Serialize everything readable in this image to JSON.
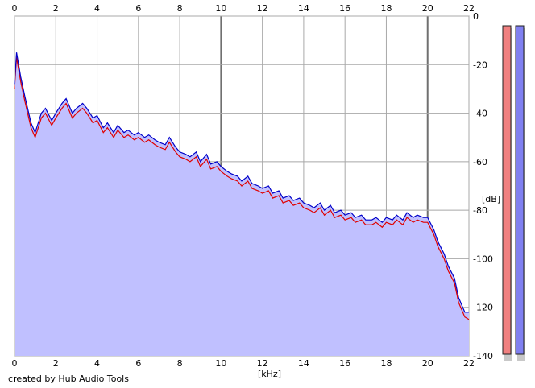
{
  "chart_data": {
    "type": "line",
    "title": "",
    "xlabel": "[kHz]",
    "ylabel": "[dB]",
    "xlim": [
      0,
      22
    ],
    "ylim": [
      -140,
      0
    ],
    "x_ticks": [
      "0",
      "2",
      "4",
      "6",
      "8",
      "10",
      "12",
      "14",
      "16",
      "18",
      "20",
      "22"
    ],
    "y_ticks": [
      "0",
      "-20",
      "-40",
      "-60",
      "-80",
      "-100",
      "-120",
      "-140"
    ],
    "grid": true,
    "series": [
      {
        "color": "#e00000",
        "x": [
          0,
          0.1,
          0.3,
          0.5,
          0.8,
          1.0,
          1.3,
          1.5,
          1.8,
          2.0,
          2.3,
          2.5,
          2.8,
          3.0,
          3.3,
          3.5,
          3.8,
          4.0,
          4.3,
          4.5,
          4.8,
          5.0,
          5.3,
          5.5,
          5.8,
          6.0,
          6.3,
          6.5,
          6.8,
          7.0,
          7.3,
          7.5,
          7.8,
          8.0,
          8.3,
          8.5,
          8.8,
          9.0,
          9.3,
          9.5,
          9.8,
          10.0,
          10.3,
          10.5,
          10.8,
          11.0,
          11.3,
          11.5,
          11.8,
          12.0,
          12.3,
          12.5,
          12.8,
          13.0,
          13.3,
          13.5,
          13.8,
          14.0,
          14.3,
          14.5,
          14.8,
          15.0,
          15.3,
          15.5,
          15.8,
          16.0,
          16.3,
          16.5,
          16.8,
          17.0,
          17.3,
          17.5,
          17.8,
          18.0,
          18.3,
          18.5,
          18.8,
          19.0,
          19.3,
          19.5,
          19.8,
          20.0,
          20.3,
          20.5,
          20.8,
          21.0,
          21.3,
          21.5,
          21.8,
          22.0
        ],
        "y": [
          -30,
          -17,
          -27,
          -35,
          -46,
          -50,
          -42,
          -40,
          -45,
          -42,
          -38,
          -36,
          -42,
          -40,
          -38,
          -40,
          -44,
          -43,
          -48,
          -46,
          -50,
          -47,
          -50,
          -49,
          -51,
          -50,
          -52,
          -51,
          -53,
          -54,
          -55,
          -52,
          -56,
          -58,
          -59,
          -60,
          -58,
          -62,
          -59,
          -63,
          -62,
          -64,
          -66,
          -67,
          -68,
          -70,
          -68,
          -71,
          -72,
          -73,
          -72,
          -75,
          -74,
          -77,
          -76,
          -78,
          -77,
          -79,
          -80,
          -81,
          -79,
          -82,
          -80,
          -83,
          -82,
          -84,
          -83,
          -85,
          -84,
          -86,
          -86,
          -85,
          -87,
          -85,
          -86,
          -84,
          -86,
          -83,
          -85,
          -84,
          -85,
          -85,
          -90,
          -95,
          -100,
          -105,
          -110,
          -118,
          -124,
          -125
        ]
      },
      {
        "color": "#0000c8",
        "x": [
          0,
          0.1,
          0.3,
          0.5,
          0.8,
          1.0,
          1.3,
          1.5,
          1.8,
          2.0,
          2.3,
          2.5,
          2.8,
          3.0,
          3.3,
          3.5,
          3.8,
          4.0,
          4.3,
          4.5,
          4.8,
          5.0,
          5.3,
          5.5,
          5.8,
          6.0,
          6.3,
          6.5,
          6.8,
          7.0,
          7.3,
          7.5,
          7.8,
          8.0,
          8.3,
          8.5,
          8.8,
          9.0,
          9.3,
          9.5,
          9.8,
          10.0,
          10.3,
          10.5,
          10.8,
          11.0,
          11.3,
          11.5,
          11.8,
          12.0,
          12.3,
          12.5,
          12.8,
          13.0,
          13.3,
          13.5,
          13.8,
          14.0,
          14.3,
          14.5,
          14.8,
          15.0,
          15.3,
          15.5,
          15.8,
          16.0,
          16.3,
          16.5,
          16.8,
          17.0,
          17.3,
          17.5,
          17.8,
          18.0,
          18.3,
          18.5,
          18.8,
          19.0,
          19.3,
          19.5,
          19.8,
          20.0,
          20.3,
          20.5,
          20.8,
          21.0,
          21.3,
          21.5,
          21.8,
          22.0
        ],
        "y": [
          -28,
          -15,
          -25,
          -33,
          -44,
          -48,
          -40,
          -38,
          -43,
          -40,
          -36,
          -34,
          -40,
          -38,
          -36,
          -38,
          -42,
          -41,
          -46,
          -44,
          -48,
          -45,
          -48,
          -47,
          -49,
          -48,
          -50,
          -49,
          -51,
          -52,
          -53,
          -50,
          -54,
          -56,
          -57,
          -58,
          -56,
          -60,
          -57,
          -61,
          -60,
          -62,
          -64,
          -65,
          -66,
          -68,
          -66,
          -69,
          -70,
          -71,
          -70,
          -73,
          -72,
          -75,
          -74,
          -76,
          -75,
          -77,
          -78,
          -79,
          -77,
          -80,
          -78,
          -81,
          -80,
          -82,
          -81,
          -83,
          -82,
          -84,
          -84,
          -83,
          -85,
          -83,
          -84,
          -82,
          -84,
          -81,
          -83,
          -82,
          -83,
          -83,
          -88,
          -93,
          -98,
          -103,
          -108,
          -116,
          -122,
          -122
        ]
      }
    ]
  },
  "meters": {
    "left_color": "#f08080",
    "right_color": "#8080f0"
  },
  "footer": {
    "credit": "created by Hub Audio Tools"
  }
}
